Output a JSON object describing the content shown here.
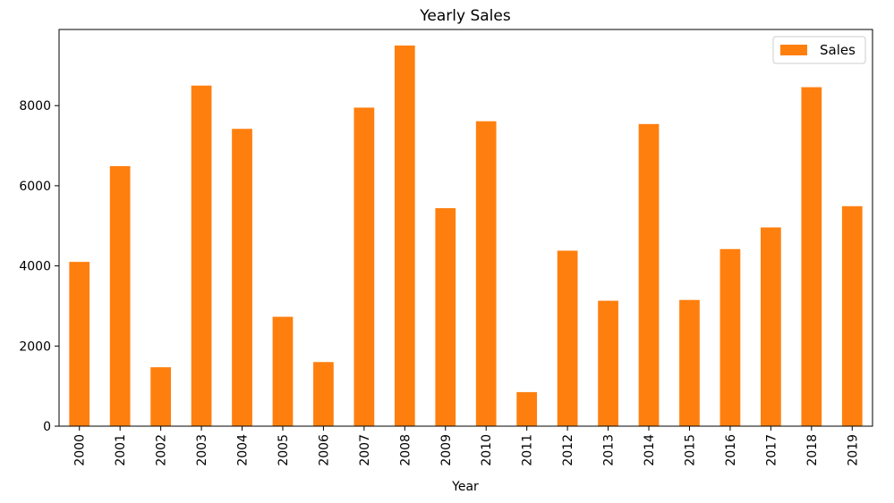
{
  "chart_data": {
    "type": "bar",
    "title": "Yearly Sales",
    "xlabel": "Year",
    "ylabel": "",
    "categories": [
      "2000",
      "2001",
      "2002",
      "2003",
      "2004",
      "2005",
      "2006",
      "2007",
      "2008",
      "2009",
      "2010",
      "2011",
      "2012",
      "2013",
      "2014",
      "2015",
      "2016",
      "2017",
      "2018",
      "2019"
    ],
    "series": [
      {
        "name": "Sales",
        "color": "#ff7f0e",
        "values": [
          4100,
          6490,
          1470,
          8500,
          7420,
          2730,
          1600,
          7950,
          9500,
          5440,
          7610,
          850,
          4380,
          3130,
          7540,
          3150,
          4420,
          4960,
          8460,
          5490
        ]
      }
    ],
    "ylim": [
      0,
      9900
    ],
    "yticks": [
      0,
      2000,
      4000,
      6000,
      8000
    ],
    "grid": false,
    "legend_position": "top-right",
    "x_tick_rotation": 90
  }
}
